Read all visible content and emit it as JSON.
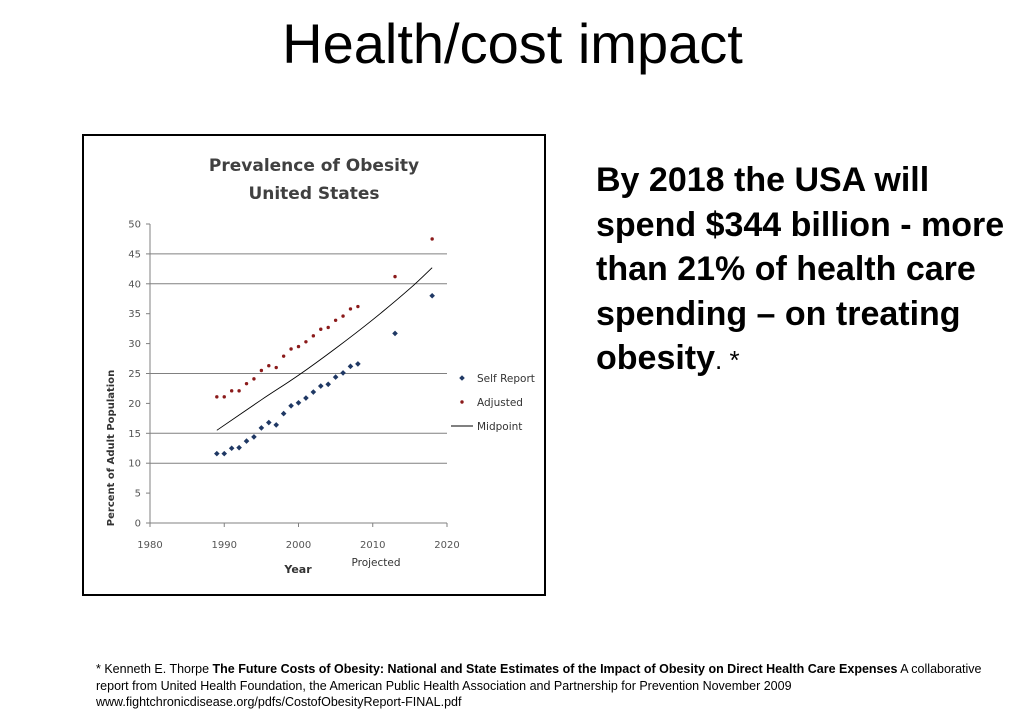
{
  "slide": {
    "title": "Health/cost impact",
    "statement": "By 2018 the USA will spend $344 billion - more than 21% of health care spending – on treating obesity",
    "statement_suffix": ". *"
  },
  "footnote": {
    "prefix": "* Kenneth E. Thorpe ",
    "title": "The Future Costs of Obesity:  National and State Estimates of the Impact of Obesity on Direct Health Care Expenses",
    "rest": " A collaborative report from United Health Foundation, the American Public Health Association and Partnership for Prevention November 2009",
    "url": "www.fightchronicdisease.org/pdfs/CostofObesityReport-FINAL.pdf"
  },
  "chart_data": {
    "type": "scatter",
    "title": "Prevalence of Obesity",
    "subtitle": "United States",
    "xlabel": "Year",
    "ylabel": "Percent of Adult Population",
    "x_annotation": "Projected",
    "xlim": [
      1980,
      2020
    ],
    "ylim": [
      0,
      50
    ],
    "x_ticks": [
      1980,
      1990,
      2000,
      2010,
      2020
    ],
    "y_ticks": [
      0,
      5,
      10,
      15,
      20,
      25,
      30,
      35,
      40,
      45,
      50
    ],
    "grid": "horizontal lines at 10, 15, 25, 40, 45",
    "legend_placement": "right",
    "series": [
      {
        "name": "Self Report",
        "marker": "diamond",
        "color": "#1f3864",
        "points": [
          [
            1989,
            11.6
          ],
          [
            1990,
            11.6
          ],
          [
            1991,
            12.5
          ],
          [
            1992,
            12.6
          ],
          [
            1993,
            13.7
          ],
          [
            1994,
            14.4
          ],
          [
            1995,
            15.9
          ],
          [
            1996,
            16.8
          ],
          [
            1997,
            16.4
          ],
          [
            1998,
            18.3
          ],
          [
            1999,
            19.6
          ],
          [
            2000,
            20.1
          ],
          [
            2001,
            20.9
          ],
          [
            2002,
            21.9
          ],
          [
            2003,
            22.9
          ],
          [
            2004,
            23.2
          ],
          [
            2005,
            24.4
          ],
          [
            2006,
            25.1
          ],
          [
            2007,
            26.2
          ],
          [
            2008,
            26.6
          ],
          [
            2013,
            31.7
          ],
          [
            2018,
            38.0
          ]
        ]
      },
      {
        "name": "Adjusted",
        "marker": "dot",
        "color": "#8b1a1a",
        "points": [
          [
            1989,
            21.1
          ],
          [
            1990,
            21.1
          ],
          [
            1991,
            22.1
          ],
          [
            1992,
            22.1
          ],
          [
            1993,
            23.3
          ],
          [
            1994,
            24.1
          ],
          [
            1995,
            25.5
          ],
          [
            1996,
            26.3
          ],
          [
            1997,
            26.0
          ],
          [
            1998,
            27.9
          ],
          [
            1999,
            29.1
          ],
          [
            2000,
            29.5
          ],
          [
            2001,
            30.3
          ],
          [
            2002,
            31.3
          ],
          [
            2003,
            32.4
          ],
          [
            2004,
            32.7
          ],
          [
            2005,
            33.9
          ],
          [
            2006,
            34.6
          ],
          [
            2007,
            35.8
          ],
          [
            2008,
            36.2
          ],
          [
            2013,
            41.2
          ],
          [
            2018,
            47.5
          ]
        ]
      },
      {
        "name": "Midpoint",
        "marker": "line",
        "color": "#000000",
        "points": [
          [
            1989,
            15.5
          ],
          [
            1995,
            20.6
          ],
          [
            2000,
            24.7
          ],
          [
            2005,
            29.2
          ],
          [
            2010,
            34.0
          ],
          [
            2015,
            39.2
          ],
          [
            2018,
            42.7
          ]
        ]
      }
    ]
  }
}
